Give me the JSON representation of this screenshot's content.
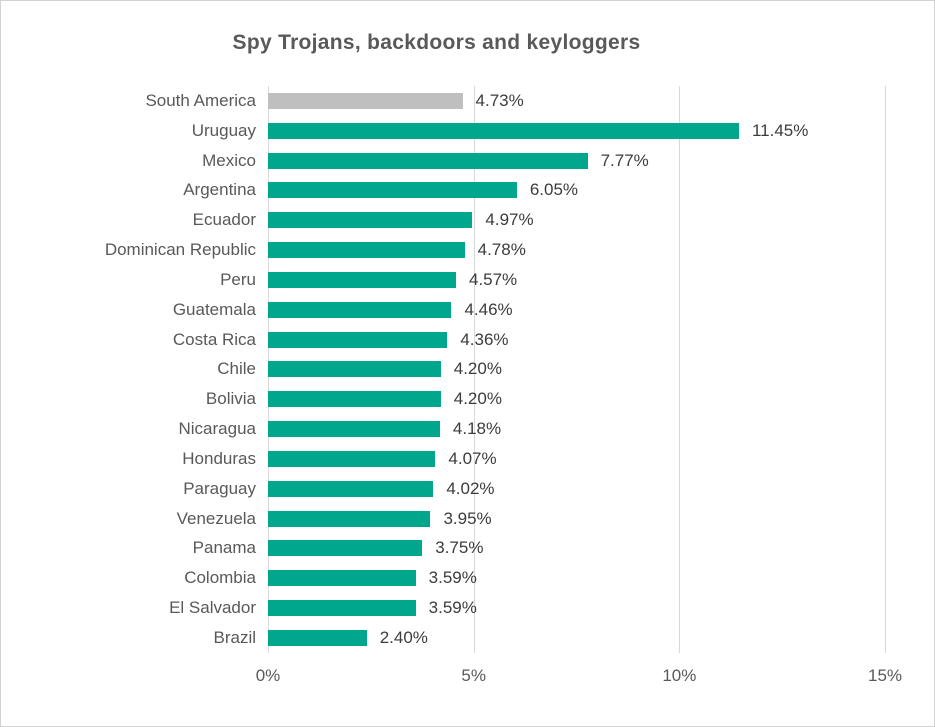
{
  "chart_data": {
    "type": "bar",
    "orientation": "horizontal",
    "title": "Spy Trojans, backdoors and keyloggers",
    "categories": [
      "South America",
      "Uruguay",
      "Mexico",
      "Argentina",
      "Ecuador",
      "Dominican Republic",
      "Peru",
      "Guatemala",
      "Costa Rica",
      "Chile",
      "Bolivia",
      "Nicaragua",
      "Honduras",
      "Paraguay",
      "Venezuela",
      "Panama",
      "Colombia",
      "El Salvador",
      "Brazil"
    ],
    "values": [
      4.73,
      11.45,
      7.77,
      6.05,
      4.97,
      4.78,
      4.57,
      4.46,
      4.36,
      4.2,
      4.2,
      4.18,
      4.07,
      4.02,
      3.95,
      3.75,
      3.59,
      3.59,
      2.4
    ],
    "display_values": [
      "4.73%",
      "11.45%",
      "7.77%",
      "6.05%",
      "4.97%",
      "4.78%",
      "4.57%",
      "4.46%",
      "4.36%",
      "4.20%",
      "4.20%",
      "4.18%",
      "4.07%",
      "4.02%",
      "3.95%",
      "3.75%",
      "3.59%",
      "3.59%",
      "2.40%"
    ],
    "xlabel": "",
    "ylabel": "",
    "xlim": [
      0,
      15
    ],
    "x_ticks": [
      {
        "label": "0%",
        "value": 0
      },
      {
        "label": "5%",
        "value": 5
      },
      {
        "label": "10%",
        "value": 10
      },
      {
        "label": "15%",
        "value": 15
      }
    ],
    "grid": "vertical-only",
    "legend": "none",
    "bar_color": "#00a78c",
    "highlight_index": 0,
    "highlight_color": "#bfbfbf",
    "gridline_color": "#d9d9d9",
    "label_color": "#595959",
    "value_label_color": "#3c3c3c",
    "title_color": "#595959"
  }
}
